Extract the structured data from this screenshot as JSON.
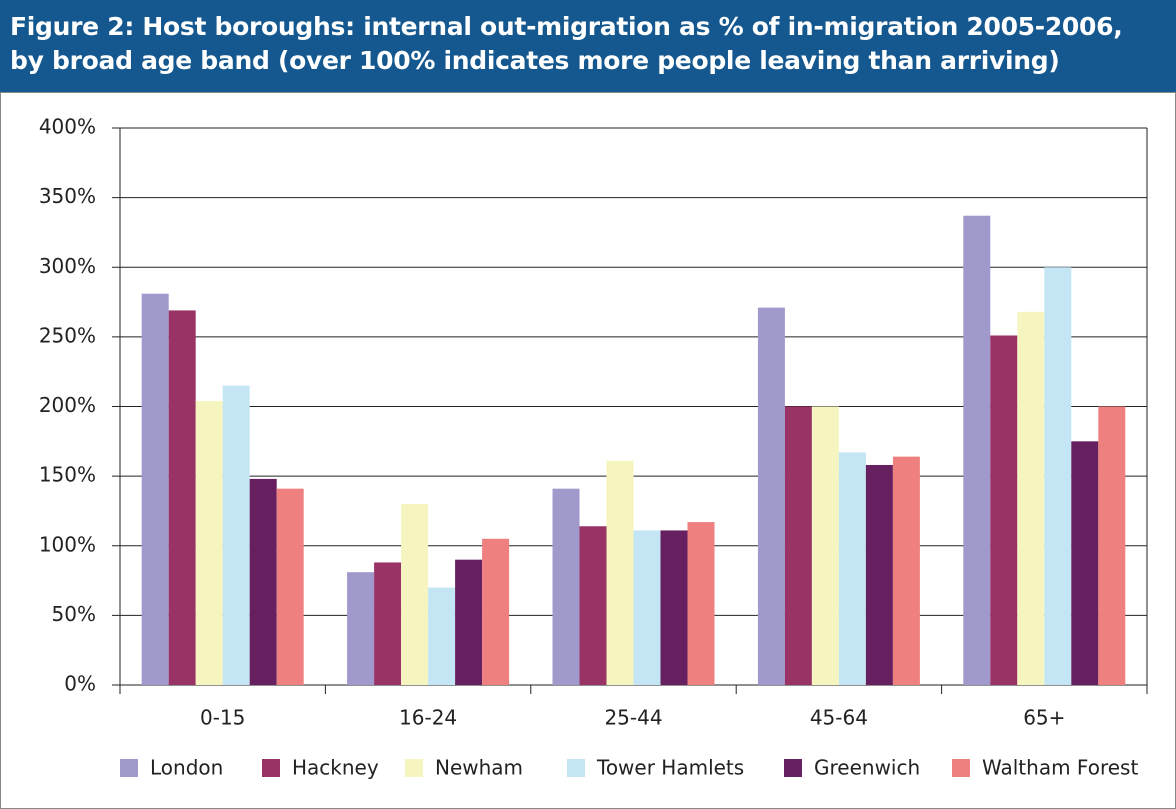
{
  "chart_data": {
    "type": "bar",
    "title": [
      "Figure 2: Host boroughs: internal out-migration as % of in-migration 2005-2006,",
      "by broad age band (over 100% indicates more people leaving than arriving)"
    ],
    "categories": [
      "0-15",
      "16-24",
      "25-44",
      "45-64",
      "65+"
    ],
    "series": [
      {
        "name": "London",
        "color": "#9f99cc",
        "values": [
          281,
          81,
          141,
          271,
          337
        ]
      },
      {
        "name": "Hackney",
        "color": "#993366",
        "values": [
          269,
          88,
          114,
          200,
          251
        ]
      },
      {
        "name": "Newham",
        "color": "#f7f5bf",
        "values": [
          204,
          130,
          161,
          200,
          268
        ]
      },
      {
        "name": "Tower Hamlets",
        "color": "#c4e6f4",
        "values": [
          215,
          70,
          111,
          167,
          300
        ]
      },
      {
        "name": "Greenwich",
        "color": "#662060",
        "values": [
          148,
          90,
          111,
          158,
          175
        ]
      },
      {
        "name": "Waltham Forest",
        "color": "#ef8080",
        "values": [
          141,
          105,
          117,
          164,
          200
        ]
      }
    ],
    "ylim": [
      0,
      400
    ],
    "yticks": [
      {
        "value": 0,
        "label": "0%"
      },
      {
        "value": 50,
        "label": "50%"
      },
      {
        "value": 100,
        "label": "100%"
      },
      {
        "value": 150,
        "label": "150%"
      },
      {
        "value": 200,
        "label": "200%"
      },
      {
        "value": 250,
        "label": "250%"
      },
      {
        "value": 300,
        "label": "300%"
      },
      {
        "value": 350,
        "label": "350%"
      },
      {
        "value": 400,
        "label": "400%"
      }
    ],
    "grid": true,
    "legend": "bottom"
  }
}
